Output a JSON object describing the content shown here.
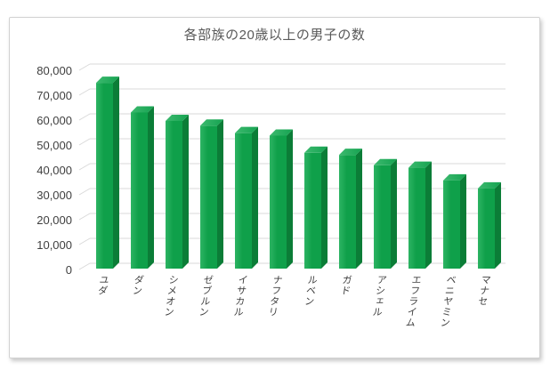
{
  "page": {
    "background_color": "#ffffff"
  },
  "chart_data": {
    "type": "bar",
    "style": "3d-column",
    "title": "各部族の20歳以上の男子の数",
    "xlabel": "",
    "ylabel": "",
    "categories": [
      "ユダ",
      "ダン",
      "シメオン",
      "ゼブルン",
      "イサカル",
      "ナフタリ",
      "ルベン",
      "ガド",
      "アシェル",
      "エフライム",
      "ベニヤミン",
      "マナセ"
    ],
    "values": [
      74600,
      62700,
      59300,
      57400,
      54400,
      53400,
      46500,
      45650,
      41500,
      40500,
      35400,
      32200
    ],
    "ylim": [
      0,
      80000
    ],
    "ytick_step": 10000,
    "ytick_labels": [
      "0",
      "10,000",
      "20,000",
      "30,000",
      "40,000",
      "50,000",
      "60,000",
      "70,000",
      "80,000"
    ],
    "grid": true,
    "legend": false,
    "colors": {
      "bar_front": "#0fa04a",
      "bar_front_highlight": "#2db463",
      "bar_side": "#0b7d37",
      "bar_top": "#15a351",
      "bar_top_light": "#3cb96e",
      "gridline": "#d9d9d9",
      "axis_text": "#3f3f3f",
      "title_text": "#595959",
      "frame_border": "#d2d2d2"
    }
  }
}
